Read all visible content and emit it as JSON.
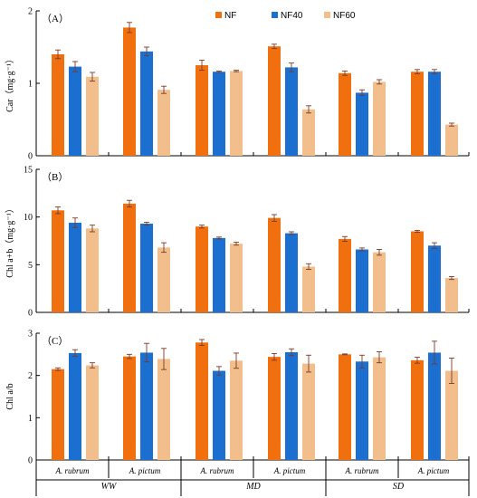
{
  "legend": [
    "NF",
    "NF40",
    "NF60"
  ],
  "colors": {
    "NF": "#F07010",
    "NF40": "#1A6FD0",
    "NF60": "#F2BE8C",
    "error": "#7a3a2a"
  },
  "groups": [
    {
      "species": "A. rubrum",
      "condition": "WW"
    },
    {
      "species": "A. pictum",
      "condition": "WW"
    },
    {
      "species": "A. rubrum",
      "condition": "MD"
    },
    {
      "species": "A. pictum",
      "condition": "MD"
    },
    {
      "species": "A. rubrum",
      "condition": "SD"
    },
    {
      "species": "A. pictum",
      "condition": "SD"
    }
  ],
  "conditions": [
    "WW",
    "MD",
    "SD"
  ],
  "chart_data": [
    {
      "type": "bar",
      "panel_label": "（A）",
      "ylabel": "Car（mg·g⁻¹）",
      "ylim": [
        0,
        2
      ],
      "yticks": [
        "0",
        "1",
        "2"
      ],
      "categories": [
        "A. rubrum WW",
        "A. pictum WW",
        "A. rubrum MD",
        "A. pictum MD",
        "A. rubrum SD",
        "A. pictum SD"
      ],
      "series": [
        {
          "name": "NF",
          "values": [
            1.4,
            1.77,
            1.25,
            1.51,
            1.14,
            1.16
          ],
          "errors": [
            0.06,
            0.07,
            0.07,
            0.03,
            0.03,
            0.03
          ]
        },
        {
          "name": "NF40",
          "values": [
            1.23,
            1.44,
            1.16,
            1.22,
            0.87,
            1.16
          ],
          "errors": [
            0.07,
            0.06,
            0.01,
            0.06,
            0.04,
            0.03
          ]
        },
        {
          "name": "NF60",
          "values": [
            1.09,
            0.91,
            1.17,
            0.64,
            1.02,
            0.43
          ],
          "errors": [
            0.06,
            0.05,
            0.01,
            0.05,
            0.03,
            0.02
          ]
        }
      ]
    },
    {
      "type": "bar",
      "panel_label": "（B）",
      "ylabel": "Chl a+b（mg·g⁻¹）",
      "ylim": [
        0,
        15
      ],
      "yticks": [
        "0",
        "5",
        "10",
        "15"
      ],
      "categories": [
        "A. rubrum WW",
        "A. pictum WW",
        "A. rubrum MD",
        "A. pictum MD",
        "A. rubrum SD",
        "A. pictum SD"
      ],
      "series": [
        {
          "name": "NF",
          "values": [
            10.7,
            11.4,
            9.0,
            9.9,
            7.7,
            8.5
          ],
          "errors": [
            0.35,
            0.35,
            0.15,
            0.35,
            0.25,
            0.1
          ]
        },
        {
          "name": "NF40",
          "values": [
            9.4,
            9.3,
            7.8,
            8.3,
            6.6,
            7.0
          ],
          "errors": [
            0.5,
            0.15,
            0.1,
            0.15,
            0.15,
            0.3
          ]
        },
        {
          "name": "NF60",
          "values": [
            8.8,
            6.8,
            7.2,
            4.8,
            6.3,
            3.6
          ],
          "errors": [
            0.35,
            0.5,
            0.15,
            0.3,
            0.3,
            0.15
          ]
        }
      ]
    },
    {
      "type": "bar",
      "panel_label": "（C）",
      "ylabel": "Chl a/b",
      "ylim": [
        0,
        3
      ],
      "yticks": [
        "0",
        "1",
        "2",
        "3"
      ],
      "categories": [
        "A. rubrum WW",
        "A. pictum WW",
        "A. rubrum MD",
        "A. pictum MD",
        "A. rubrum SD",
        "A. pictum SD"
      ],
      "series": [
        {
          "name": "NF",
          "values": [
            2.15,
            2.45,
            2.78,
            2.44,
            2.5,
            2.36
          ],
          "errors": [
            0.03,
            0.05,
            0.07,
            0.08,
            0.01,
            0.07
          ]
        },
        {
          "name": "NF40",
          "values": [
            2.53,
            2.54,
            2.11,
            2.55,
            2.33,
            2.54
          ],
          "errors": [
            0.08,
            0.22,
            0.1,
            0.08,
            0.15,
            0.27
          ]
        },
        {
          "name": "NF60",
          "values": [
            2.24,
            2.39,
            2.35,
            2.28,
            2.43,
            2.11
          ],
          "errors": [
            0.06,
            0.25,
            0.18,
            0.2,
            0.13,
            0.3
          ]
        }
      ]
    }
  ]
}
